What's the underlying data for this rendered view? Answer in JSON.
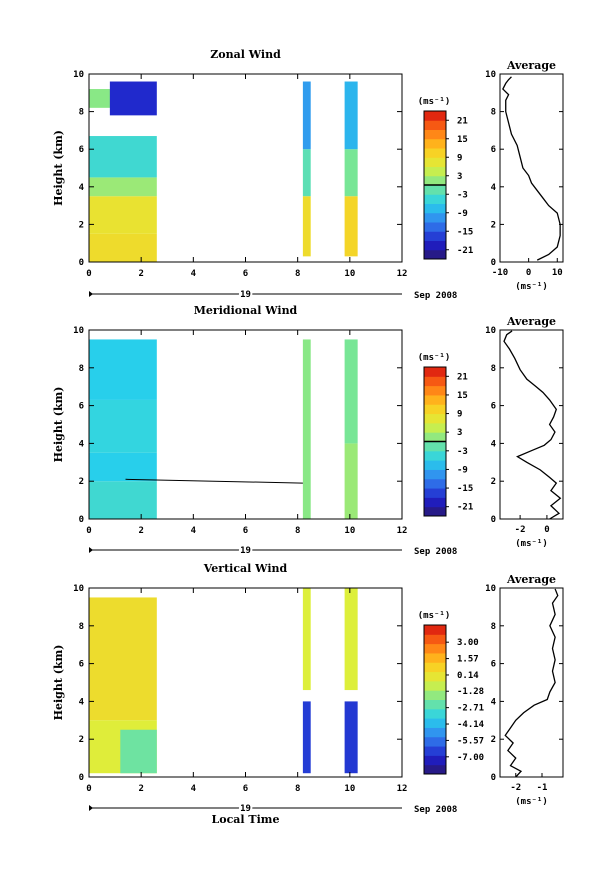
{
  "x_axis_label": "Local Time",
  "chart_data": [
    {
      "type": "heatmap",
      "title": "Zonal Wind",
      "ylabel": "Height (km)",
      "xlabel": "Local Time",
      "xlim": [
        0,
        12
      ],
      "ylim": [
        0,
        10
      ],
      "x_ticks": [
        "0",
        "2",
        "4",
        "6",
        "8",
        "10",
        "12"
      ],
      "y_ticks": [
        "0",
        "2",
        "4",
        "6",
        "8",
        "10"
      ],
      "date_day": "19",
      "date_month": "Sep 2008",
      "colorbar": {
        "unit_label": "(ms⁻¹)",
        "range": [
          -24,
          24
        ],
        "tick_labels": [
          "21",
          "15",
          "9",
          "3",
          "-3",
          "-9",
          "-15",
          "-21"
        ],
        "tick_values": [
          21,
          15,
          9,
          3,
          -3,
          -9,
          -15,
          -21
        ]
      },
      "data_blocks": [
        {
          "x0": 0.0,
          "x1": 2.6,
          "y0": 0.0,
          "y1": 1.5,
          "value": 9
        },
        {
          "x0": 0.0,
          "x1": 2.6,
          "y0": 1.5,
          "y1": 3.5,
          "value": 8
        },
        {
          "x0": 0.0,
          "x1": 2.6,
          "y0": 3.5,
          "y1": 4.5,
          "value": 2
        },
        {
          "x0": 0.0,
          "x1": 2.6,
          "y0": 4.5,
          "y1": 6.7,
          "value": -4
        },
        {
          "x0": 0.0,
          "x1": 1.4,
          "y0": 8.2,
          "y1": 9.2,
          "value": 1
        },
        {
          "x0": 0.8,
          "x1": 2.6,
          "y0": 7.8,
          "y1": 9.6,
          "value": -18
        },
        {
          "x0": 8.2,
          "x1": 8.5,
          "y0": 0.3,
          "y1": 3.5,
          "value": 9
        },
        {
          "x0": 8.2,
          "x1": 8.5,
          "y0": 3.5,
          "y1": 6.0,
          "value": -2
        },
        {
          "x0": 8.2,
          "x1": 8.5,
          "y0": 6.0,
          "y1": 9.6,
          "value": -10
        },
        {
          "x0": 9.8,
          "x1": 10.3,
          "y0": 0.3,
          "y1": 3.5,
          "value": 10
        },
        {
          "x0": 9.8,
          "x1": 10.3,
          "y0": 3.5,
          "y1": 6.0,
          "value": 0
        },
        {
          "x0": 9.8,
          "x1": 10.3,
          "y0": 6.0,
          "y1": 9.6,
          "value": -8
        }
      ],
      "average_profile": {
        "title": "Average",
        "xlim": [
          -10,
          12
        ],
        "x_ticks": [
          {
            "label": "-10",
            "value": -10
          },
          {
            "label": "0",
            "value": 0
          },
          {
            "label": "10",
            "value": 10
          }
        ],
        "y_ticks": [
          "0",
          "2",
          "4",
          "6",
          "8",
          "10"
        ],
        "xlabel": "(ms⁻¹)",
        "points": [
          [
            3,
            0.1
          ],
          [
            7,
            0.4
          ],
          [
            10,
            0.8
          ],
          [
            11,
            1.4
          ],
          [
            11,
            2.0
          ],
          [
            10,
            2.6
          ],
          [
            7,
            3.0
          ],
          [
            5,
            3.4
          ],
          [
            3,
            3.8
          ],
          [
            1,
            4.2
          ],
          [
            0,
            4.6
          ],
          [
            -2,
            5.0
          ],
          [
            -3,
            5.6
          ],
          [
            -4,
            6.2
          ],
          [
            -6,
            6.8
          ],
          [
            -7,
            7.4
          ],
          [
            -8,
            8.0
          ],
          [
            -8,
            8.6
          ],
          [
            -7,
            8.9
          ],
          [
            -9,
            9.2
          ],
          [
            -8,
            9.5
          ],
          [
            -7,
            9.7
          ],
          [
            -6,
            9.85
          ]
        ]
      }
    },
    {
      "type": "heatmap",
      "title": "Meridional Wind",
      "ylabel": "Height (km)",
      "xlabel": "Local Time",
      "xlim": [
        0,
        12
      ],
      "ylim": [
        0,
        10
      ],
      "x_ticks": [
        "0",
        "2",
        "4",
        "6",
        "8",
        "10",
        "12"
      ],
      "y_ticks": [
        "0",
        "2",
        "4",
        "6",
        "8",
        "10"
      ],
      "date_day": "19",
      "date_month": "Sep 2008",
      "colorbar": {
        "unit_label": "(ms⁻¹)",
        "range": [
          -24,
          24
        ],
        "tick_labels": [
          "21",
          "15",
          "9",
          "3",
          "-3",
          "-9",
          "-15",
          "-21"
        ],
        "tick_values": [
          21,
          15,
          9,
          3,
          -3,
          -9,
          -15,
          -21
        ]
      },
      "data_blocks": [
        {
          "x0": 0.0,
          "x1": 2.6,
          "y0": 0.0,
          "y1": 2.0,
          "value": -4
        },
        {
          "x0": 0.0,
          "x1": 2.6,
          "y0": 2.0,
          "y1": 3.5,
          "value": -6
        },
        {
          "x0": 0.0,
          "x1": 2.6,
          "y0": 3.5,
          "y1": 6.3,
          "value": -5
        },
        {
          "x0": 0.0,
          "x1": 2.6,
          "y0": 6.3,
          "y1": 9.5,
          "value": -6
        },
        {
          "x0": 8.2,
          "x1": 8.5,
          "y0": 0.0,
          "y1": 9.5,
          "value": 1
        },
        {
          "x0": 9.8,
          "x1": 10.3,
          "y0": 0.0,
          "y1": 4.0,
          "value": 2
        },
        {
          "x0": 9.8,
          "x1": 10.3,
          "y0": 4.0,
          "y1": 9.5,
          "value": 0
        }
      ],
      "contour_line": [
        [
          1.4,
          2.1
        ],
        [
          8.2,
          1.9
        ]
      ],
      "average_profile": {
        "title": "Average",
        "xlim": [
          -3.5,
          1.2
        ],
        "x_ticks": [
          {
            "label": "-2",
            "value": -2
          },
          {
            "label": "0",
            "value": 0
          }
        ],
        "y_ticks": [
          "0",
          "2",
          "4",
          "6",
          "8",
          "10"
        ],
        "xlabel": "(ms⁻¹)",
        "points": [
          [
            0.2,
            0.0
          ],
          [
            0.9,
            0.3
          ],
          [
            0.3,
            0.7
          ],
          [
            1.0,
            1.1
          ],
          [
            0.3,
            1.5
          ],
          [
            0.7,
            1.9
          ],
          [
            0.2,
            2.2
          ],
          [
            -0.5,
            2.6
          ],
          [
            -1.5,
            3.0
          ],
          [
            -2.2,
            3.3
          ],
          [
            -1.2,
            3.6
          ],
          [
            -0.2,
            3.9
          ],
          [
            0.3,
            4.2
          ],
          [
            0.6,
            4.6
          ],
          [
            0.2,
            5.0
          ],
          [
            0.5,
            5.4
          ],
          [
            0.7,
            5.8
          ],
          [
            0.2,
            6.3
          ],
          [
            -0.3,
            6.7
          ],
          [
            -0.8,
            7.0
          ],
          [
            -1.5,
            7.4
          ],
          [
            -2.0,
            7.9
          ],
          [
            -2.4,
            8.5
          ],
          [
            -2.8,
            9.0
          ],
          [
            -3.2,
            9.4
          ],
          [
            -3.0,
            9.75
          ],
          [
            -2.6,
            9.95
          ]
        ]
      }
    },
    {
      "type": "heatmap",
      "title": "Vertical Wind",
      "ylabel": "Height (km)",
      "xlabel": "Local Time",
      "xlim": [
        0,
        12
      ],
      "ylim": [
        0,
        10
      ],
      "x_ticks": [
        "0",
        "2",
        "4",
        "6",
        "8",
        "10",
        "12"
      ],
      "y_ticks": [
        "0",
        "2",
        "4",
        "6",
        "8",
        "10"
      ],
      "date_day": "19",
      "date_month": "Sep 2008",
      "colorbar": {
        "unit_label": "(ms⁻¹)",
        "range": [
          -8.5,
          4.5
        ],
        "tick_labels": [
          "3.00",
          "1.57",
          "0.14",
          "-1.28",
          "-2.71",
          "-4.14",
          "-5.57",
          "-7.00"
        ],
        "tick_values": [
          3.0,
          1.57,
          0.14,
          -1.28,
          -2.71,
          -4.14,
          -5.57,
          -7.0
        ]
      },
      "data_blocks": [
        {
          "x0": 0.0,
          "x1": 2.6,
          "y0": 3.0,
          "y1": 9.5,
          "value": 0.4
        },
        {
          "x0": 0.0,
          "x1": 2.6,
          "y0": 0.2,
          "y1": 3.0,
          "value": -0.3
        },
        {
          "x0": 1.2,
          "x1": 2.6,
          "y0": 0.2,
          "y1": 2.5,
          "value": -2.2
        },
        {
          "x0": 8.2,
          "x1": 8.5,
          "y0": 4.6,
          "y1": 10.0,
          "value": -0.4
        },
        {
          "x0": 9.8,
          "x1": 10.3,
          "y0": 4.6,
          "y1": 10.0,
          "value": -0.4
        },
        {
          "x0": 8.2,
          "x1": 8.5,
          "y0": 0.2,
          "y1": 4.0,
          "value": -6.5
        },
        {
          "x0": 9.8,
          "x1": 10.3,
          "y0": 0.2,
          "y1": 4.0,
          "value": -6.6
        }
      ],
      "average_profile": {
        "title": "Average",
        "xlim": [
          -2.6,
          -0.2
        ],
        "x_ticks": [
          {
            "label": "-2",
            "value": -2
          },
          {
            "label": "-1",
            "value": -1
          }
        ],
        "y_ticks": [
          "0",
          "2",
          "4",
          "6",
          "8",
          "10"
        ],
        "xlabel": "(ms⁻¹)",
        "points": [
          [
            -2.0,
            0.0
          ],
          [
            -1.8,
            0.3
          ],
          [
            -2.2,
            0.6
          ],
          [
            -2.0,
            1.0
          ],
          [
            -2.3,
            1.4
          ],
          [
            -2.1,
            1.8
          ],
          [
            -2.4,
            2.2
          ],
          [
            -2.2,
            2.6
          ],
          [
            -2.0,
            3.0
          ],
          [
            -1.7,
            3.4
          ],
          [
            -1.3,
            3.8
          ],
          [
            -0.8,
            4.1
          ],
          [
            -0.7,
            4.5
          ],
          [
            -0.5,
            5.0
          ],
          [
            -0.6,
            5.6
          ],
          [
            -0.5,
            6.2
          ],
          [
            -0.6,
            6.8
          ],
          [
            -0.5,
            7.4
          ],
          [
            -0.7,
            8.0
          ],
          [
            -0.5,
            8.6
          ],
          [
            -0.6,
            9.2
          ],
          [
            -0.4,
            9.6
          ],
          [
            -0.5,
            9.95
          ]
        ]
      }
    }
  ]
}
